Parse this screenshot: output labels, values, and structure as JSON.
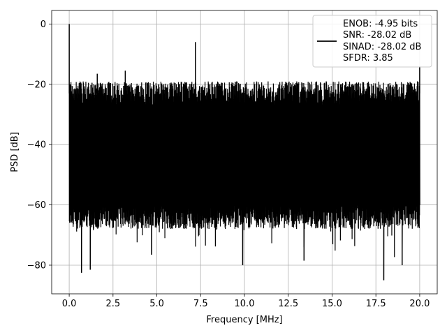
{
  "chart_data": {
    "type": "line",
    "title": "",
    "xlabel": "Frequency [MHz]",
    "ylabel": "PSD [dB]",
    "xlim": [
      -1.0,
      21.0
    ],
    "ylim": [
      -89.5,
      4.5
    ],
    "xticks": [
      0.0,
      2.5,
      5.0,
      7.5,
      10.0,
      12.5,
      15.0,
      17.5,
      20.0
    ],
    "xtick_labels": [
      "0.0",
      "2.5",
      "5.0",
      "7.5",
      "10.0",
      "12.5",
      "15.0",
      "17.5",
      "20.0"
    ],
    "yticks": [
      0,
      -20,
      -40,
      -60,
      -80
    ],
    "ytick_labels": [
      "0",
      "−20",
      "−40",
      "−60",
      "−80"
    ],
    "grid": true,
    "legend_position": "top-right",
    "legend_lines": [
      "ENOB: -4.95 bits",
      "SNR: -28.02 dB",
      "SINAD: -28.02 dB",
      "SFDR: 3.85"
    ],
    "series_color": "#000000",
    "noise_band": {
      "x_start": 0.0,
      "x_end": 20.0,
      "upper_envelope_db": -23,
      "lower_envelope_db": -60,
      "min_dips": [
        {
          "x": 0.7,
          "y": -82.5
        },
        {
          "x": 1.2,
          "y": -81.5
        },
        {
          "x": 4.7,
          "y": -76.5
        },
        {
          "x": 9.9,
          "y": -80.0
        },
        {
          "x": 13.4,
          "y": -78.5
        },
        {
          "x": 17.95,
          "y": -85.0
        },
        {
          "x": 19.0,
          "y": -80.0
        }
      ]
    },
    "peaks": [
      {
        "x": 0.0,
        "y": 0.0
      },
      {
        "x": 1.3,
        "y": -19.5
      },
      {
        "x": 1.6,
        "y": -16.5
      },
      {
        "x": 3.2,
        "y": -15.5
      },
      {
        "x": 7.2,
        "y": -6.0
      },
      {
        "x": 20.0,
        "y": -14.0
      }
    ]
  }
}
